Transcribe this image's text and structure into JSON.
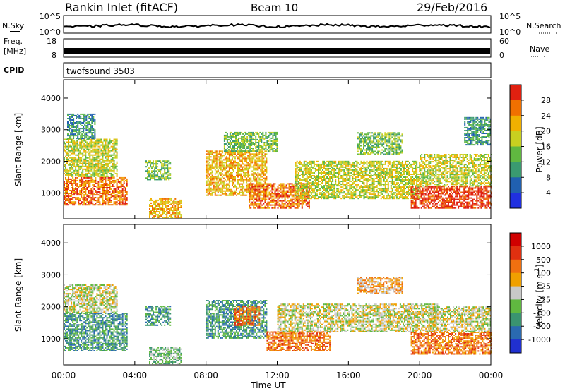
{
  "header": {
    "station": "Rankin Inlet (fitACF)",
    "beam": "Beam 10",
    "date": "29/Feb/2016"
  },
  "panels": {
    "noise": {
      "left_label": "N.Sky",
      "right_label": "N.Search",
      "left_ticks": [
        "10^5",
        "10^0"
      ],
      "right_ticks": [
        "10^5",
        "10^0"
      ]
    },
    "freq": {
      "left_label_1": "Freq.",
      "left_label_2": "[MHz]",
      "right_label": "Nave",
      "left_ticks": [
        "18",
        "8"
      ],
      "right_ticks": [
        "60",
        "0"
      ]
    },
    "cpid": {
      "left_label": "CPID",
      "value": "twofsound 3503"
    }
  },
  "chart_data": [
    {
      "type": "heatmap",
      "title": "",
      "xlabel": "Time UT",
      "ylabel": "Slant Range [km]",
      "x_ticks": [
        "00:00",
        "04:00",
        "08:00",
        "12:00",
        "16:00",
        "20:00",
        "00:00"
      ],
      "xlim_hours": [
        0,
        24
      ],
      "y_ticks": [
        1000,
        2000,
        3000,
        4000
      ],
      "ylim": [
        180,
        4580
      ],
      "colorbar": {
        "label": "Power [dB]",
        "ticks": [
          "28",
          "24",
          "20",
          "16",
          "12",
          "8",
          "4"
        ],
        "colors": [
          "#2030e0",
          "#2060b0",
          "#3a9a70",
          "#60b840",
          "#c8d020",
          "#f0b000",
          "#f07000",
          "#e02010"
        ]
      },
      "regions": [
        {
          "t0": 0.0,
          "t1": 3.6,
          "r0": 600,
          "r1": 1500,
          "level": 6
        },
        {
          "t0": 0.0,
          "t1": 3.0,
          "r0": 1500,
          "r1": 2700,
          "level": 4
        },
        {
          "t0": 0.2,
          "t1": 1.8,
          "r0": 2700,
          "r1": 3500,
          "level": 2
        },
        {
          "t0": 4.6,
          "t1": 6.0,
          "r0": 1400,
          "r1": 2000,
          "level": 3
        },
        {
          "t0": 4.8,
          "t1": 6.6,
          "r0": 200,
          "r1": 800,
          "level": 5
        },
        {
          "t0": 8.0,
          "t1": 11.4,
          "r0": 900,
          "r1": 2300,
          "level": 5
        },
        {
          "t0": 9.0,
          "t1": 12.0,
          "r0": 2300,
          "r1": 2900,
          "level": 3
        },
        {
          "t0": 10.4,
          "t1": 13.8,
          "r0": 500,
          "r1": 1300,
          "level": 6
        },
        {
          "t0": 13.0,
          "t1": 20.0,
          "r0": 800,
          "r1": 2000,
          "level": 4
        },
        {
          "t0": 16.5,
          "t1": 19.0,
          "r0": 2200,
          "r1": 2900,
          "level": 3
        },
        {
          "t0": 19.5,
          "t1": 24.0,
          "r0": 500,
          "r1": 1200,
          "level": 7
        },
        {
          "t0": 20.0,
          "t1": 24.0,
          "r0": 1200,
          "r1": 2200,
          "level": 4
        },
        {
          "t0": 22.5,
          "t1": 24.0,
          "r0": 2500,
          "r1": 3400,
          "level": 2
        }
      ]
    },
    {
      "type": "heatmap",
      "title": "",
      "xlabel": "Time UT",
      "ylabel": "Slant Range [km]",
      "x_ticks": [
        "00:00",
        "04:00",
        "08:00",
        "12:00",
        "16:00",
        "20:00",
        "00:00"
      ],
      "xlim_hours": [
        0,
        24
      ],
      "y_ticks": [
        1000,
        2000,
        3000,
        4000
      ],
      "ylim": [
        180,
        4580
      ],
      "colorbar": {
        "label": "Velocity [m s^-1]",
        "ticks": [
          "1000",
          "500",
          "100",
          "25",
          "-25",
          "-100",
          "-500",
          "-1000"
        ],
        "colors": [
          "#2030d0",
          "#2a6ab0",
          "#3a9470",
          "#60b840",
          "#c8c8c8",
          "#f0a000",
          "#f07010",
          "#e03010",
          "#d00000"
        ]
      },
      "regions": [
        {
          "t0": 0.0,
          "t1": 3.6,
          "r0": 600,
          "r1": 1800,
          "level": 2
        },
        {
          "t0": 0.0,
          "t1": 3.0,
          "r0": 1800,
          "r1": 2700,
          "level": 4
        },
        {
          "t0": 4.6,
          "t1": 6.0,
          "r0": 1400,
          "r1": 2000,
          "level": 2
        },
        {
          "t0": 4.8,
          "t1": 6.6,
          "r0": 200,
          "r1": 700,
          "level": 3
        },
        {
          "t0": 8.0,
          "t1": 11.4,
          "r0": 1000,
          "r1": 2200,
          "level": 2
        },
        {
          "t0": 9.6,
          "t1": 11.0,
          "r0": 1400,
          "r1": 2000,
          "level": 6
        },
        {
          "t0": 11.4,
          "t1": 15.0,
          "r0": 600,
          "r1": 1200,
          "level": 6
        },
        {
          "t0": 12.0,
          "t1": 21.0,
          "r0": 1200,
          "r1": 2100,
          "level": 4
        },
        {
          "t0": 16.5,
          "t1": 19.0,
          "r0": 2400,
          "r1": 2900,
          "level": 5
        },
        {
          "t0": 19.5,
          "t1": 24.0,
          "r0": 500,
          "r1": 1200,
          "level": 6
        },
        {
          "t0": 20.5,
          "t1": 24.0,
          "r0": 1200,
          "r1": 2000,
          "level": 4
        }
      ]
    }
  ]
}
